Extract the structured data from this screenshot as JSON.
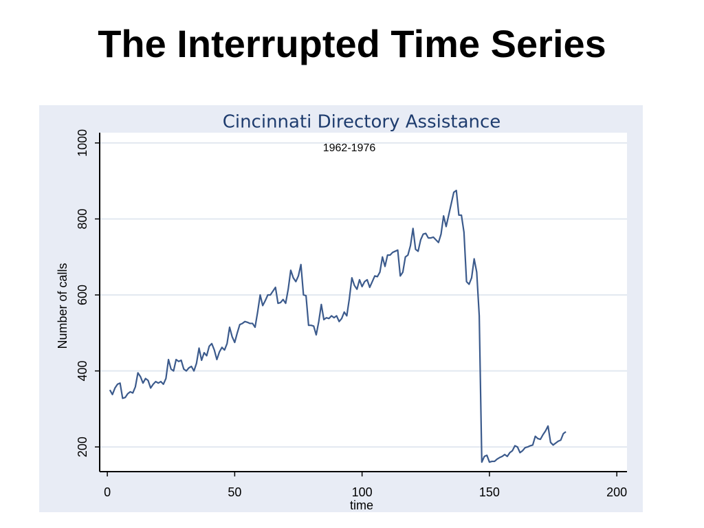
{
  "page_title": "The Interrupted Time Series",
  "chart_data": {
    "type": "line",
    "title": "Cincinnati Directory Assistance",
    "subtitle": "1962-1976",
    "x_label": "time",
    "y_label": "Number of calls",
    "color": "#3b5a8c",
    "x": [
      1,
      2,
      3,
      4,
      5,
      6,
      7,
      8,
      9,
      10,
      11,
      12,
      13,
      14,
      15,
      16,
      17,
      18,
      19,
      20,
      21,
      22,
      23,
      24,
      25,
      26,
      27,
      28,
      29,
      30,
      31,
      32,
      33,
      34,
      35,
      36,
      37,
      38,
      39,
      40,
      41,
      42,
      43,
      44,
      45,
      46,
      47,
      48,
      49,
      50,
      51,
      52,
      53,
      54,
      55,
      56,
      57,
      58,
      59,
      60,
      61,
      62,
      63,
      64,
      65,
      66,
      67,
      68,
      69,
      70,
      71,
      72,
      73,
      74,
      75,
      76,
      77,
      78,
      79,
      80,
      81,
      82,
      83,
      84,
      85,
      86,
      87,
      88,
      89,
      90,
      91,
      92,
      93,
      94,
      95,
      96,
      97,
      98,
      99,
      100,
      101,
      102,
      103,
      104,
      105,
      106,
      107,
      108,
      109,
      110,
      111,
      112,
      113,
      114,
      115,
      116,
      117,
      118,
      119,
      120,
      121,
      122,
      123,
      124,
      125,
      126,
      127,
      128,
      129,
      130,
      131,
      132,
      133,
      134,
      135,
      136,
      137,
      138,
      139,
      140,
      141,
      142,
      143,
      144,
      145,
      146,
      147,
      148,
      149,
      150,
      151,
      152,
      153,
      154,
      155,
      156,
      157,
      158,
      159,
      160,
      161,
      162,
      163,
      164,
      165,
      166,
      167,
      168,
      169,
      170,
      171,
      172,
      173,
      174,
      175,
      176,
      177,
      178,
      179,
      180
    ],
    "values": [
      350,
      338,
      355,
      365,
      368,
      328,
      330,
      340,
      345,
      342,
      358,
      395,
      385,
      368,
      380,
      375,
      355,
      365,
      372,
      368,
      372,
      365,
      380,
      430,
      405,
      400,
      430,
      425,
      428,
      405,
      400,
      408,
      412,
      400,
      420,
      460,
      428,
      448,
      440,
      465,
      472,
      455,
      430,
      450,
      462,
      455,
      472,
      515,
      490,
      475,
      500,
      522,
      525,
      530,
      528,
      525,
      525,
      515,
      555,
      600,
      572,
      585,
      600,
      600,
      610,
      620,
      578,
      580,
      588,
      578,
      615,
      665,
      645,
      635,
      650,
      680,
      600,
      598,
      520,
      520,
      518,
      495,
      530,
      575,
      535,
      540,
      538,
      545,
      540,
      545,
      530,
      538,
      555,
      545,
      590,
      645,
      625,
      615,
      640,
      622,
      635,
      640,
      620,
      635,
      650,
      648,
      660,
      700,
      675,
      705,
      705,
      712,
      715,
      718,
      650,
      660,
      700,
      705,
      730,
      775,
      720,
      715,
      745,
      760,
      762,
      750,
      750,
      752,
      745,
      738,
      760,
      808,
      780,
      810,
      840,
      870,
      875,
      810,
      810,
      765,
      635,
      628,
      645,
      695,
      660,
      545,
      160,
      175,
      178,
      160,
      162,
      162,
      168,
      172,
      175,
      180,
      175,
      185,
      190,
      203,
      200,
      185,
      190,
      198,
      200,
      203,
      205,
      228,
      222,
      220,
      232,
      242,
      255,
      212,
      205,
      210,
      215,
      218,
      235,
      240
    ],
    "xlim": [
      -3,
      204
    ],
    "xticks": [
      0,
      50,
      100,
      150,
      200
    ],
    "ylim": [
      135,
      1027
    ],
    "yticks": [
      200,
      400,
      600,
      800,
      1000
    ],
    "grid": true
  }
}
